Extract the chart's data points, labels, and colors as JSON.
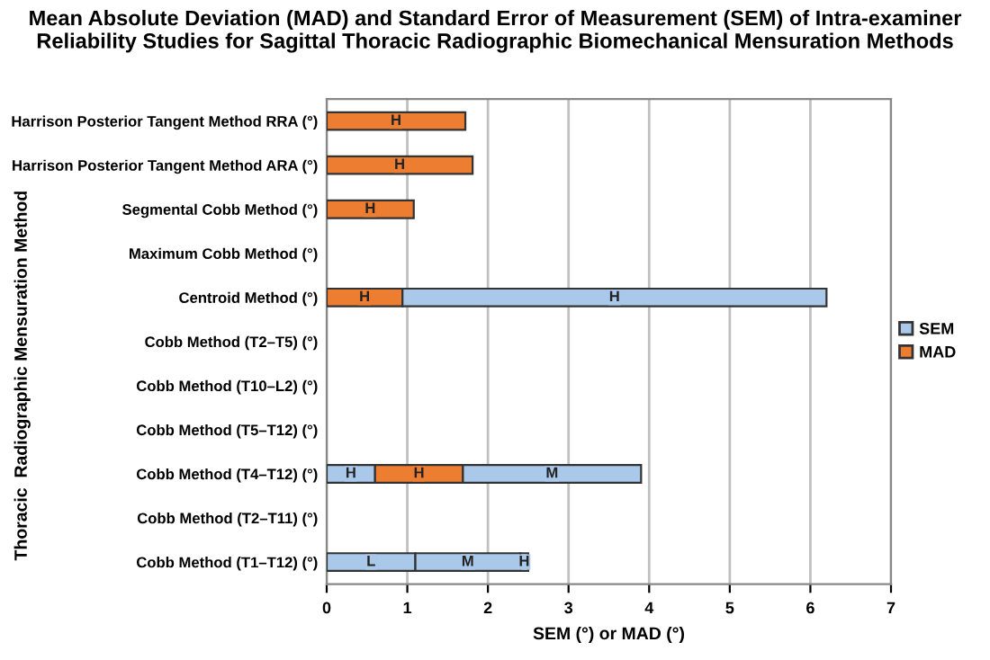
{
  "chart_data": {
    "type": "bar",
    "orientation": "horizontal",
    "stacked": true,
    "title": "Mean Absolute Deviation (MAD) and Standard Error of Measurement (SEM) of Intra-examiner Reliability Studies for Sagittal Thoracic Radiographic Biomechanical Mensuration Methods",
    "xlabel": "SEM (°) or MAD (°)",
    "ylabel": "Thoracic  Radiographic Mensuration Method",
    "categories": [
      "Harrison Posterior Tangent Method RRA (°)",
      "Harrison Posterior Tangent Method ARA (°)",
      "Segmental Cobb Method (°)",
      "Maximum Cobb Method (°)",
      "Centroid Method (°)",
      "Cobb Method (T2–T5) (°)",
      "Cobb Method (T10–L2) (°)",
      "Cobb Method (T5–T12) (°)",
      "Cobb Method (T4–T12) (°)",
      "Cobb Method (T2–T11) (°)",
      "Cobb Method (T1–T12) (°)"
    ],
    "series": [
      {
        "name": "SEM",
        "color": "#a9c8ea",
        "values": [
          null,
          null,
          null,
          null,
          null,
          null,
          null,
          null,
          0.6,
          null,
          1.1
        ],
        "value_labels": [
          null,
          null,
          null,
          null,
          null,
          null,
          null,
          null,
          "H",
          null,
          "L"
        ]
      },
      {
        "name": "MAD",
        "color": "#ed7d31",
        "values": [
          1.72,
          1.81,
          1.08,
          null,
          0.94,
          null,
          null,
          null,
          1.09,
          null,
          null
        ],
        "value_labels": [
          "H",
          "H",
          "H",
          null,
          "H",
          null,
          null,
          null,
          "H",
          null,
          null
        ]
      },
      {
        "color": "#a9c8ea",
        "values": [
          null,
          null,
          null,
          null,
          5.26,
          null,
          null,
          null,
          2.21,
          null,
          1.3
        ],
        "value_labels": [
          null,
          null,
          null,
          null,
          "H",
          null,
          null,
          null,
          "M",
          null,
          "M"
        ]
      },
      {
        "color": "#a9c8ea",
        "values": [
          null,
          null,
          null,
          null,
          null,
          null,
          null,
          null,
          null,
          null,
          0.1
        ],
        "value_labels": [
          null,
          null,
          null,
          null,
          null,
          null,
          null,
          null,
          null,
          null,
          "H"
        ]
      }
    ],
    "xlim": [
      0,
      7
    ],
    "xticks": [
      0,
      1,
      2,
      3,
      4,
      5,
      6,
      7
    ],
    "grid": "x",
    "legend": "right"
  }
}
